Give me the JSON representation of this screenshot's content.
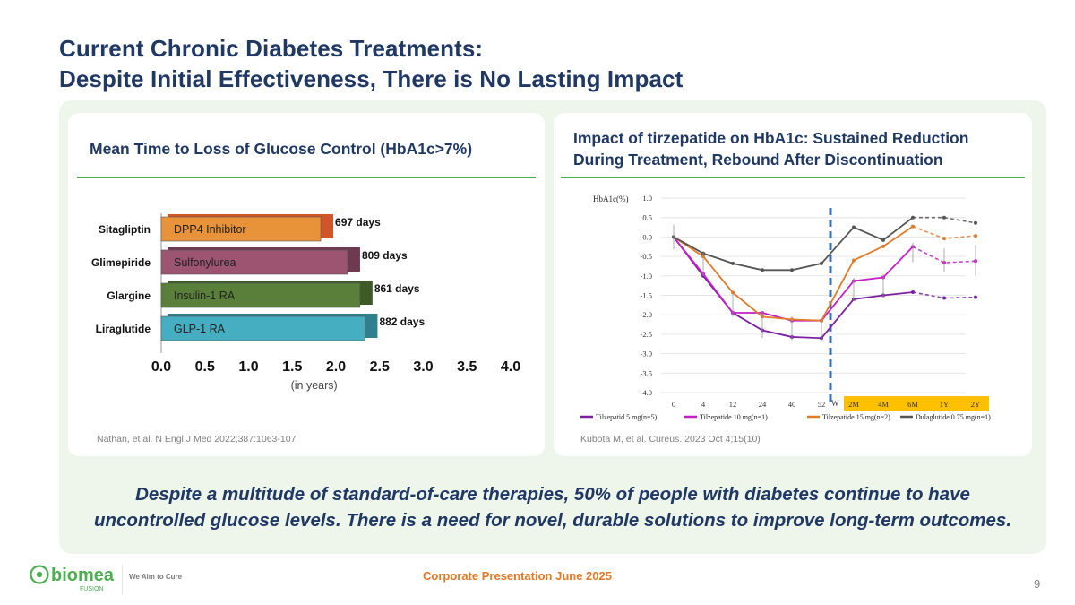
{
  "slide": {
    "title_line1": "Current Chronic Diabetes Treatments:",
    "title_line2": "Despite Initial Effectiveness, There is No Lasting Impact",
    "bottom_note_line1": "Despite a multitude of standard-of-care therapies, 50% of people with diabetes continue to have",
    "bottom_note_line2": "uncontrolled glucose levels.  There is a need for novel, durable solutions to improve long-term outcomes.",
    "footer": {
      "brand": "biomea",
      "brand_sub": "FUSION",
      "tagline": "We Aim to Cure",
      "presentation": "Corporate Presentation June 2025",
      "page_number": "9"
    },
    "colors": {
      "title": "#1f3864",
      "accent_green": "#4caf50",
      "panel_bg": "#eef5ea",
      "footer_orange": "#e87722"
    }
  },
  "left_card": {
    "title": "Mean Time to Loss of Glucose Control (HbA1c>7%)",
    "citation": "Nathan, et al. N Engl J Med 2022;387:1063-107"
  },
  "right_card": {
    "title_line1": "Impact of tirzepatide on HbA1c: Sustained Reduction",
    "title_line2": "During Treatment, Rebound After Discontinuation",
    "citation": "Kubota M, et al. Cureus. 2023 Oct 4;15(10)"
  },
  "chart_data": [
    {
      "type": "bar",
      "orientation": "horizontal",
      "title": "Mean Time to Loss of Glucose Control (HbA1c>7%)",
      "xlabel": "(in years)",
      "ylabel": "",
      "xlim": [
        0,
        4
      ],
      "xticks": [
        "0.0",
        "0.5",
        "1.0",
        "1.5",
        "2.0",
        "2.5",
        "3.0",
        "3.5",
        "4.0"
      ],
      "categories": [
        "Sitagliptin",
        "Glimepiride",
        "Glargine",
        "Liraglutide"
      ],
      "bar_labels": [
        "DPP4 Inhibitor",
        "Sulfonylurea",
        "Insulin-1 RA",
        "GLP-1 RA"
      ],
      "values_days": [
        697,
        809,
        861,
        882
      ],
      "value_labels": [
        "697 days",
        "809 days",
        "861 days",
        "882 days"
      ],
      "colors": [
        "#e8923a",
        "#9c5470",
        "#5a7f3a",
        "#45aec0"
      ],
      "shadow_colors": [
        "#d0562a",
        "#6e3a52",
        "#3d5a28",
        "#2f7f8f"
      ],
      "grid": false
    },
    {
      "type": "line",
      "title": "Impact of tirzepatide on HbA1c",
      "ylabel": "HbA1c(%)",
      "ylim": [
        -4.0,
        1.0
      ],
      "yticks": [
        "1.0",
        "0.5",
        "0.0",
        "-0.5",
        "-1.0",
        "-1.5",
        "-2.0",
        "-2.5",
        "-3.0",
        "-3.5",
        "-4.0"
      ],
      "x": [
        "0",
        "4",
        "12",
        "24",
        "40",
        "52",
        "2M",
        "4M",
        "6M",
        "1Y",
        "2Y"
      ],
      "withdrawal_marker": "W",
      "post_withdrawal_labels": [
        "2M",
        "4M",
        "6M",
        "1Y",
        "2Y"
      ],
      "post_withdrawal_band_color": "#ffc000",
      "dashed_from_index": 8,
      "grid": true,
      "legend_position": "bottom",
      "series": [
        {
          "name": "Tilzepatid 5 mg(n=5)",
          "color": "#7b1fa2",
          "values": [
            0.0,
            -1.0,
            -1.95,
            -2.4,
            -2.57,
            -2.6,
            -1.6,
            -1.5,
            -1.42,
            -1.57,
            -1.55
          ]
        },
        {
          "name": "Tilzepatide 10 mg(n=1)",
          "color": "#c51fc5",
          "values": [
            0.0,
            -0.95,
            -1.95,
            -1.95,
            -2.15,
            -2.15,
            -1.13,
            -1.04,
            -0.25,
            -0.66,
            -0.62
          ]
        },
        {
          "name": "Tilzepatide 15 mg(n=2)",
          "color": "#e07b2a",
          "values": [
            0.0,
            -0.5,
            -1.43,
            -2.05,
            -2.12,
            -2.15,
            -0.6,
            -0.24,
            0.27,
            -0.04,
            0.03
          ]
        },
        {
          "name": "Dulaglutide 0.75 mg(n=1)",
          "color": "#555555",
          "values": [
            0.0,
            -0.42,
            -0.68,
            -0.85,
            -0.85,
            -0.68,
            0.25,
            -0.08,
            0.5,
            0.5,
            0.36
          ]
        }
      ]
    }
  ]
}
